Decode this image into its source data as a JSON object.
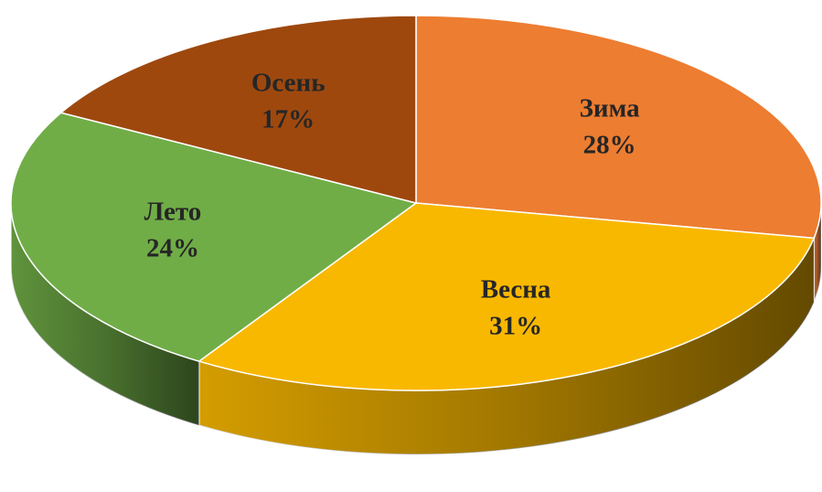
{
  "chart_data": {
    "type": "pie",
    "categories": [
      "Зима",
      "Весна",
      "Лето",
      "Осень"
    ],
    "values": [
      28,
      31,
      24,
      17
    ],
    "value_labels": [
      "28%",
      "31%",
      "24%",
      "17%"
    ],
    "colors": [
      "#ED7D31",
      "#F9B800",
      "#70AD47",
      "#9E480E"
    ]
  }
}
